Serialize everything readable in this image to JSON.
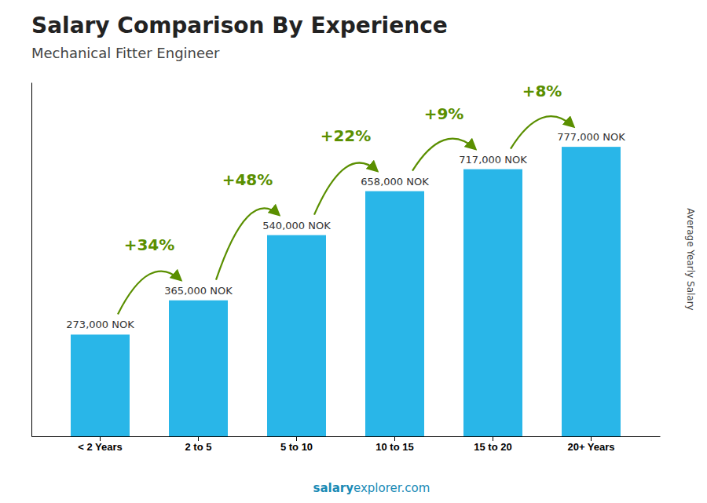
{
  "chart_data": {
    "type": "bar",
    "title": "Salary Comparison By Experience",
    "subtitle": "Mechanical Fitter Engineer",
    "categories": [
      "< 2 Years",
      "2 to 5",
      "5 to 10",
      "10 to 15",
      "15 to 20",
      "20+ Years"
    ],
    "values": [
      273000,
      365000,
      540000,
      658000,
      717000,
      777000
    ],
    "value_labels": [
      "273,000 NOK",
      "365,000 NOK",
      "540,000 NOK",
      "658,000 NOK",
      "717,000 NOK",
      "777,000 NOK"
    ],
    "data_labels": true,
    "annotations": [
      "+34%",
      "+48%",
      "+22%",
      "+9%",
      "+8%"
    ],
    "ylabel": "Average Yearly Salary",
    "footer": [
      "salary",
      "explorer.com"
    ],
    "color": "#29b6e8",
    "ylim": [
      0,
      950000
    ],
    "tick_labels": "x",
    "grid": false
  }
}
